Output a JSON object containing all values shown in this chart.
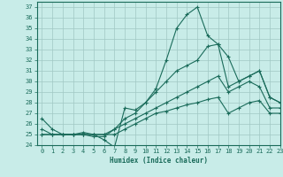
{
  "title": "",
  "xlabel": "Humidex (Indice chaleur)",
  "xlim": [
    -0.5,
    23
  ],
  "ylim": [
    24,
    37.5
  ],
  "xticks": [
    0,
    1,
    2,
    3,
    4,
    5,
    6,
    7,
    8,
    9,
    10,
    11,
    12,
    13,
    14,
    15,
    16,
    17,
    18,
    19,
    20,
    21,
    22,
    23
  ],
  "yticks": [
    24,
    25,
    26,
    27,
    28,
    29,
    30,
    31,
    32,
    33,
    34,
    35,
    36,
    37
  ],
  "bg_color": "#c8ece8",
  "grid_color": "#a0c8c4",
  "line_color": "#1a6b5a",
  "lines": [
    {
      "x": [
        0,
        1,
        2,
        3,
        4,
        5,
        6,
        7,
        8,
        9,
        10,
        11,
        12,
        13,
        14,
        15,
        16,
        17,
        18,
        19,
        20,
        21,
        22,
        23
      ],
      "y": [
        26.5,
        25.5,
        25.0,
        25.0,
        25.2,
        25.0,
        24.5,
        23.8,
        27.5,
        27.3,
        28.0,
        29.3,
        32.0,
        35.0,
        36.3,
        37.0,
        34.3,
        33.5,
        32.3,
        30.0,
        30.5,
        31.0,
        28.5,
        28.0
      ]
    },
    {
      "x": [
        0,
        1,
        2,
        3,
        4,
        5,
        6,
        7,
        8,
        9,
        10,
        11,
        12,
        13,
        14,
        15,
        16,
        17,
        18,
        19,
        20,
        21,
        22,
        23
      ],
      "y": [
        25.5,
        25.0,
        25.0,
        25.0,
        25.0,
        24.8,
        24.8,
        25.5,
        26.5,
        27.0,
        28.0,
        29.0,
        30.0,
        31.0,
        31.5,
        32.0,
        33.3,
        33.5,
        29.5,
        30.0,
        30.5,
        31.0,
        28.5,
        28.0
      ]
    },
    {
      "x": [
        0,
        1,
        2,
        3,
        4,
        5,
        6,
        7,
        8,
        9,
        10,
        11,
        12,
        13,
        14,
        15,
        16,
        17,
        18,
        19,
        20,
        21,
        22,
        23
      ],
      "y": [
        25.0,
        25.0,
        25.0,
        25.0,
        25.0,
        25.0,
        25.0,
        25.5,
        26.0,
        26.5,
        27.0,
        27.5,
        28.0,
        28.5,
        29.0,
        29.5,
        30.0,
        30.5,
        29.0,
        29.5,
        30.0,
        29.5,
        27.5,
        27.5
      ]
    },
    {
      "x": [
        0,
        1,
        2,
        3,
        4,
        5,
        6,
        7,
        8,
        9,
        10,
        11,
        12,
        13,
        14,
        15,
        16,
        17,
        18,
        19,
        20,
        21,
        22,
        23
      ],
      "y": [
        25.0,
        25.0,
        25.0,
        25.0,
        25.0,
        25.0,
        25.0,
        25.0,
        25.5,
        26.0,
        26.5,
        27.0,
        27.2,
        27.5,
        27.8,
        28.0,
        28.3,
        28.5,
        27.0,
        27.5,
        28.0,
        28.2,
        27.0,
        27.0
      ]
    }
  ]
}
